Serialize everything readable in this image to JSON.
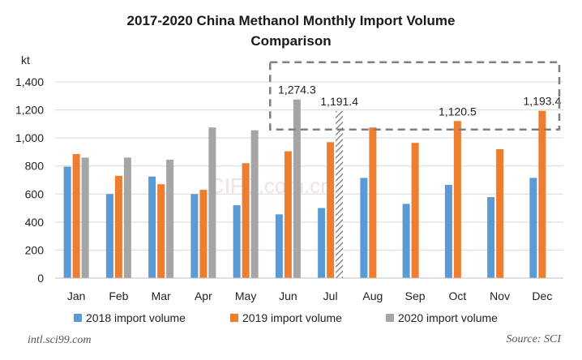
{
  "chart_data": {
    "type": "bar",
    "title_line1": "2017-2020 China Methanol Monthly Import Volume",
    "title_line2": "Comparison",
    "ylabel": "kt",
    "ylim": [
      0,
      1400
    ],
    "yticks": [
      "0",
      "200",
      "400",
      "600",
      "800",
      "1,000",
      "1,200",
      "1,400"
    ],
    "ytick_values": [
      0,
      200,
      400,
      600,
      800,
      1000,
      1200,
      1400
    ],
    "categories": [
      "Jan",
      "Feb",
      "Mar",
      "Apr",
      "May",
      "Jun",
      "Jul",
      "Aug",
      "Sep",
      "Oct",
      "Nov",
      "Dec"
    ],
    "series": [
      {
        "name": "2018 import volume",
        "color": "#5b9bd5",
        "values": [
          795,
          600,
          725,
          600,
          520,
          455,
          500,
          715,
          530,
          665,
          578,
          715
        ]
      },
      {
        "name": "2019 import volume",
        "color": "#ed7d31",
        "values": [
          885,
          730,
          670,
          630,
          820,
          905,
          970,
          1075,
          965,
          1120.5,
          920,
          1193.4
        ]
      },
      {
        "name": "2020 import volume",
        "color": "#a5a5a5",
        "values": [
          860,
          860,
          845,
          1075,
          1055,
          1274.3,
          1191.4,
          null,
          null,
          null,
          null,
          null
        ]
      }
    ],
    "hatched": {
      "series": 2,
      "category": 6,
      "note": "estimate"
    },
    "data_labels": [
      {
        "text": "1,274.3",
        "series": 2,
        "category": 5,
        "color": "#e3211c"
      },
      {
        "text": "1,191.4",
        "series": 2,
        "category": 6,
        "color": "#222222"
      },
      {
        "text": "1,120.5",
        "series": 1,
        "category": 9,
        "color": "#222222"
      },
      {
        "text": "1,193.4",
        "series": 1,
        "category": 11,
        "color": "#222222"
      }
    ],
    "highlight_box": {
      "ymin": 1060,
      "ymax": 1540,
      "from_category": 5,
      "to_category": 11
    }
  },
  "footer": {
    "left": "intl.sci99.com",
    "right": "Source: SCI"
  },
  "watermark": "CIFD.com.cn"
}
